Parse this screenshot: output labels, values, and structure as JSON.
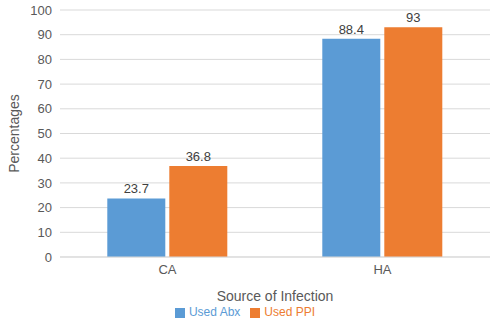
{
  "chart_data": {
    "type": "bar",
    "x_label": "Source of Infection",
    "y_label": "Percentages",
    "categories": [
      "CA",
      "HA"
    ],
    "series": [
      {
        "name": "Used Abx",
        "color": "#5b9bd5",
        "values": [
          23.7,
          88.4
        ]
      },
      {
        "name": "Used PPI",
        "color": "#ed7d31",
        "values": [
          36.8,
          93
        ]
      }
    ],
    "ylim": [
      0,
      100
    ],
    "yticks": [
      0,
      10,
      20,
      30,
      40,
      50,
      60,
      70,
      80,
      90,
      100
    ],
    "grid": true,
    "legend": "bottom",
    "data_labels": true
  }
}
